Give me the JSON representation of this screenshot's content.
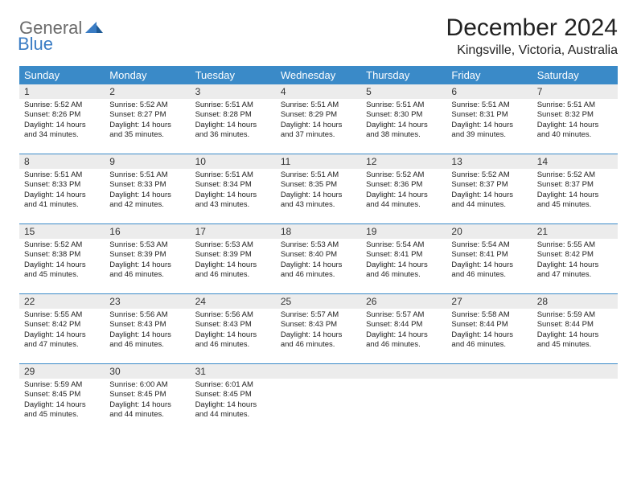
{
  "logo": {
    "text_general": "General",
    "text_blue": "Blue"
  },
  "header": {
    "month_title": "December 2024",
    "location": "Kingsville, Victoria, Australia"
  },
  "day_headers": [
    "Sunday",
    "Monday",
    "Tuesday",
    "Wednesday",
    "Thursday",
    "Friday",
    "Saturday"
  ],
  "colors": {
    "header_bg": "#3a8ac8",
    "header_text": "#ffffff",
    "day_number_bg": "#ececec",
    "divider": "#3a8ac8",
    "logo_gray": "#6b6b6b",
    "logo_blue": "#3a7cc4"
  },
  "weeks": [
    [
      {
        "num": "1",
        "sunrise": "5:52 AM",
        "sunset": "8:26 PM",
        "daylight": "14 hours and 34 minutes."
      },
      {
        "num": "2",
        "sunrise": "5:52 AM",
        "sunset": "8:27 PM",
        "daylight": "14 hours and 35 minutes."
      },
      {
        "num": "3",
        "sunrise": "5:51 AM",
        "sunset": "8:28 PM",
        "daylight": "14 hours and 36 minutes."
      },
      {
        "num": "4",
        "sunrise": "5:51 AM",
        "sunset": "8:29 PM",
        "daylight": "14 hours and 37 minutes."
      },
      {
        "num": "5",
        "sunrise": "5:51 AM",
        "sunset": "8:30 PM",
        "daylight": "14 hours and 38 minutes."
      },
      {
        "num": "6",
        "sunrise": "5:51 AM",
        "sunset": "8:31 PM",
        "daylight": "14 hours and 39 minutes."
      },
      {
        "num": "7",
        "sunrise": "5:51 AM",
        "sunset": "8:32 PM",
        "daylight": "14 hours and 40 minutes."
      }
    ],
    [
      {
        "num": "8",
        "sunrise": "5:51 AM",
        "sunset": "8:33 PM",
        "daylight": "14 hours and 41 minutes."
      },
      {
        "num": "9",
        "sunrise": "5:51 AM",
        "sunset": "8:33 PM",
        "daylight": "14 hours and 42 minutes."
      },
      {
        "num": "10",
        "sunrise": "5:51 AM",
        "sunset": "8:34 PM",
        "daylight": "14 hours and 43 minutes."
      },
      {
        "num": "11",
        "sunrise": "5:51 AM",
        "sunset": "8:35 PM",
        "daylight": "14 hours and 43 minutes."
      },
      {
        "num": "12",
        "sunrise": "5:52 AM",
        "sunset": "8:36 PM",
        "daylight": "14 hours and 44 minutes."
      },
      {
        "num": "13",
        "sunrise": "5:52 AM",
        "sunset": "8:37 PM",
        "daylight": "14 hours and 44 minutes."
      },
      {
        "num": "14",
        "sunrise": "5:52 AM",
        "sunset": "8:37 PM",
        "daylight": "14 hours and 45 minutes."
      }
    ],
    [
      {
        "num": "15",
        "sunrise": "5:52 AM",
        "sunset": "8:38 PM",
        "daylight": "14 hours and 45 minutes."
      },
      {
        "num": "16",
        "sunrise": "5:53 AM",
        "sunset": "8:39 PM",
        "daylight": "14 hours and 46 minutes."
      },
      {
        "num": "17",
        "sunrise": "5:53 AM",
        "sunset": "8:39 PM",
        "daylight": "14 hours and 46 minutes."
      },
      {
        "num": "18",
        "sunrise": "5:53 AM",
        "sunset": "8:40 PM",
        "daylight": "14 hours and 46 minutes."
      },
      {
        "num": "19",
        "sunrise": "5:54 AM",
        "sunset": "8:41 PM",
        "daylight": "14 hours and 46 minutes."
      },
      {
        "num": "20",
        "sunrise": "5:54 AM",
        "sunset": "8:41 PM",
        "daylight": "14 hours and 46 minutes."
      },
      {
        "num": "21",
        "sunrise": "5:55 AM",
        "sunset": "8:42 PM",
        "daylight": "14 hours and 47 minutes."
      }
    ],
    [
      {
        "num": "22",
        "sunrise": "5:55 AM",
        "sunset": "8:42 PM",
        "daylight": "14 hours and 47 minutes."
      },
      {
        "num": "23",
        "sunrise": "5:56 AM",
        "sunset": "8:43 PM",
        "daylight": "14 hours and 46 minutes."
      },
      {
        "num": "24",
        "sunrise": "5:56 AM",
        "sunset": "8:43 PM",
        "daylight": "14 hours and 46 minutes."
      },
      {
        "num": "25",
        "sunrise": "5:57 AM",
        "sunset": "8:43 PM",
        "daylight": "14 hours and 46 minutes."
      },
      {
        "num": "26",
        "sunrise": "5:57 AM",
        "sunset": "8:44 PM",
        "daylight": "14 hours and 46 minutes."
      },
      {
        "num": "27",
        "sunrise": "5:58 AM",
        "sunset": "8:44 PM",
        "daylight": "14 hours and 46 minutes."
      },
      {
        "num": "28",
        "sunrise": "5:59 AM",
        "sunset": "8:44 PM",
        "daylight": "14 hours and 45 minutes."
      }
    ],
    [
      {
        "num": "29",
        "sunrise": "5:59 AM",
        "sunset": "8:45 PM",
        "daylight": "14 hours and 45 minutes."
      },
      {
        "num": "30",
        "sunrise": "6:00 AM",
        "sunset": "8:45 PM",
        "daylight": "14 hours and 44 minutes."
      },
      {
        "num": "31",
        "sunrise": "6:01 AM",
        "sunset": "8:45 PM",
        "daylight": "14 hours and 44 minutes."
      },
      null,
      null,
      null,
      null
    ]
  ]
}
